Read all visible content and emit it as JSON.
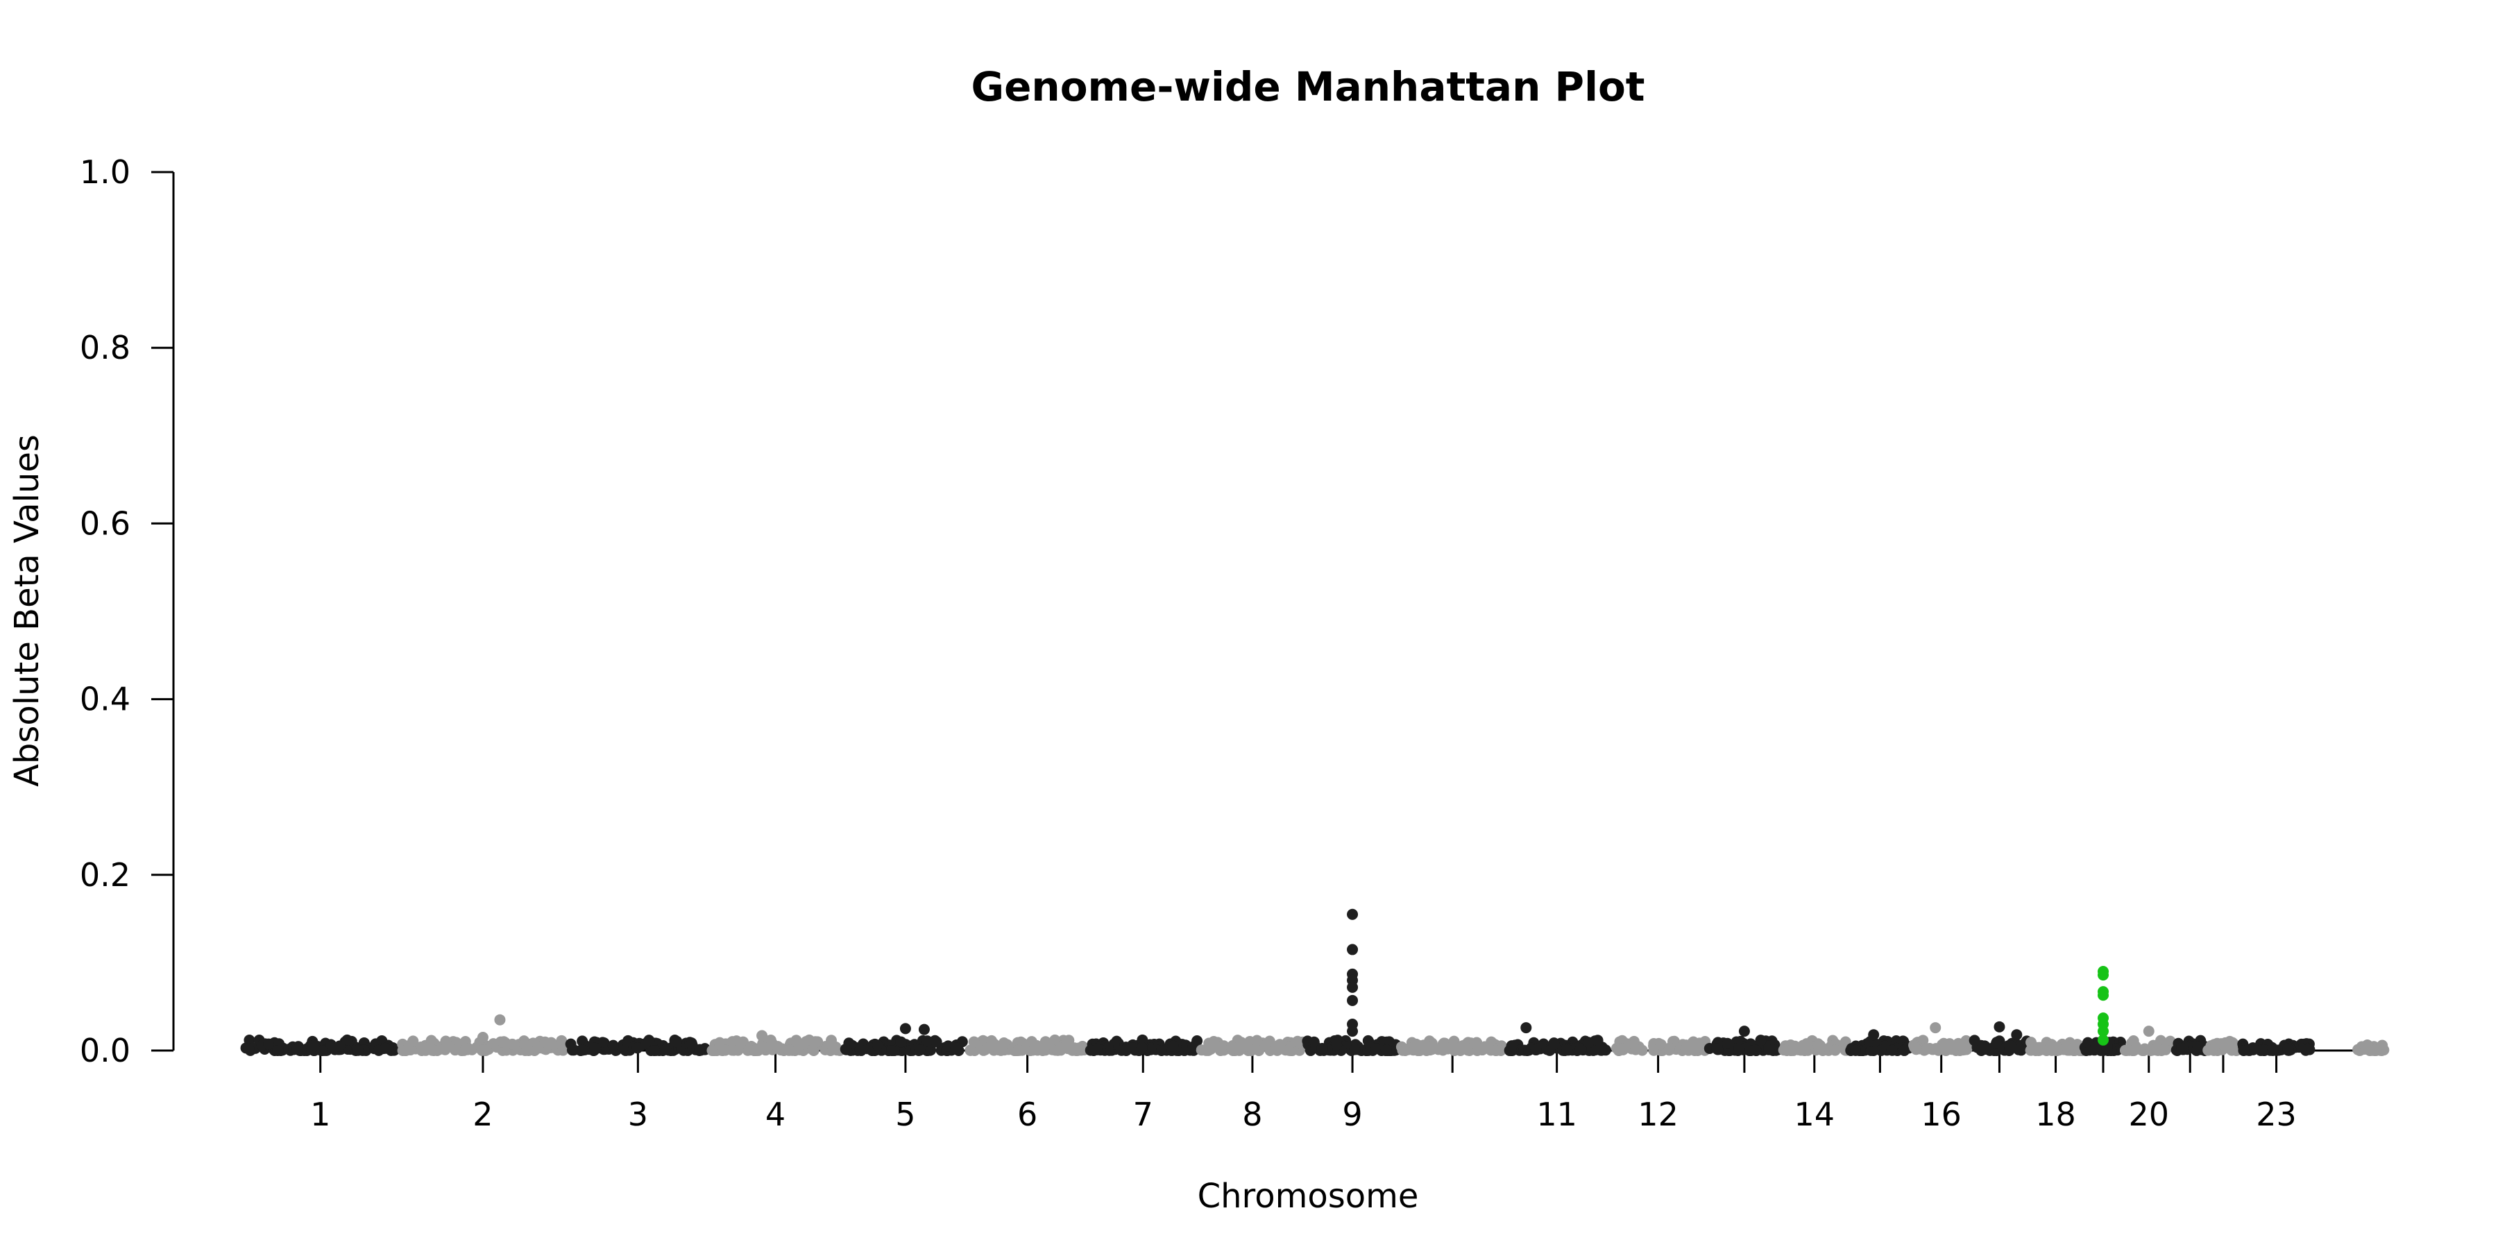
{
  "chart_data": {
    "type": "scatter",
    "subtype": "manhattan",
    "title": "Genome-wide Manhattan Plot",
    "xlabel": "Chromosome",
    "ylabel": "Absolute Beta Values",
    "ylim": [
      0,
      1.0
    ],
    "yticks": [
      "0.0",
      "0.2",
      "0.4",
      "0.6",
      "0.8",
      "1.0"
    ],
    "grid": false,
    "legend": "none",
    "colors": {
      "dark": "#1f1f1f",
      "light": "#999999",
      "highlight": "#17c317"
    },
    "chromosomes": [
      {
        "chr": "1",
        "label": "1",
        "start": 0.0,
        "end": 0.124,
        "max": 0.018
      },
      {
        "chr": "2",
        "label": "2",
        "start": 0.124,
        "end": 0.26,
        "max": 0.035,
        "peaks": [
          [
            0.6,
            0.035
          ],
          [
            0.5,
            0.015
          ]
        ]
      },
      {
        "chr": "3",
        "label": "3",
        "start": 0.26,
        "end": 0.372,
        "max": 0.012
      },
      {
        "chr": "4",
        "label": "4",
        "start": 0.372,
        "end": 0.48,
        "max": 0.017,
        "peaks": [
          [
            0.4,
            0.017
          ]
        ]
      },
      {
        "chr": "5",
        "label": "5",
        "start": 0.48,
        "end": 0.58,
        "max": 0.025,
        "peaks": [
          [
            0.5,
            0.025
          ],
          [
            0.65,
            0.024
          ]
        ]
      },
      {
        "chr": "6",
        "label": "6",
        "start": 0.58,
        "end": 0.675,
        "max": 0.014
      },
      {
        "chr": "7",
        "label": "7",
        "start": 0.675,
        "end": 0.765,
        "max": 0.012
      },
      {
        "chr": "8",
        "label": "8",
        "start": 0.765,
        "end": 0.85,
        "max": 0.016
      },
      {
        "chr": "9",
        "label": "9",
        "start": 0.85,
        "end": 0.925,
        "max": 0.155,
        "peaks": [
          [
            0.5,
            0.155
          ],
          [
            0.5,
            0.115
          ],
          [
            0.5,
            0.087
          ],
          [
            0.5,
            0.08
          ],
          [
            0.5,
            0.072
          ],
          [
            0.5,
            0.057
          ],
          [
            0.5,
            0.03
          ],
          [
            0.5,
            0.022
          ]
        ]
      },
      {
        "chr": "10",
        "label": "",
        "start": 0.925,
        "end": 1.01,
        "max": 0.011
      },
      {
        "chr": "11",
        "label": "11",
        "start": 1.01,
        "end": 1.092,
        "max": 0.026,
        "peaks": [
          [
            0.2,
            0.026
          ]
        ]
      },
      {
        "chr": "12",
        "label": "12",
        "start": 1.092,
        "end": 1.172,
        "max": 0.012
      },
      {
        "chr": "13",
        "label": "",
        "start": 1.172,
        "end": 1.23,
        "max": 0.022,
        "peaks": [
          [
            0.5,
            0.022
          ]
        ]
      },
      {
        "chr": "14",
        "label": "14",
        "start": 1.23,
        "end": 1.284,
        "max": 0.016
      },
      {
        "chr": "15",
        "label": "",
        "start": 1.284,
        "end": 1.335,
        "max": 0.018,
        "peaks": [
          [
            0.4,
            0.018
          ]
        ]
      },
      {
        "chr": "16",
        "label": "16",
        "start": 1.335,
        "end": 1.382,
        "max": 0.026,
        "peaks": [
          [
            0.4,
            0.026
          ]
        ]
      },
      {
        "chr": "17",
        "label": "",
        "start": 1.382,
        "end": 1.428,
        "max": 0.027,
        "peaks": [
          [
            0.5,
            0.027
          ],
          [
            0.8,
            0.018
          ]
        ]
      },
      {
        "chr": "18",
        "label": "18",
        "start": 1.428,
        "end": 1.472,
        "max": 0.01
      },
      {
        "chr": "19",
        "label": "",
        "start": 1.472,
        "end": 1.504,
        "max": 0.09,
        "highlight": true,
        "peaks": [
          [
            0.5,
            0.09
          ],
          [
            0.5,
            0.086
          ],
          [
            0.5,
            0.067
          ],
          [
            0.5,
            0.063
          ],
          [
            0.5,
            0.037
          ],
          [
            0.5,
            0.03
          ],
          [
            0.5,
            0.022
          ],
          [
            0.5,
            0.012
          ]
        ]
      },
      {
        "chr": "20",
        "label": "20",
        "start": 1.504,
        "end": 1.545,
        "max": 0.022,
        "peaks": [
          [
            0.5,
            0.022
          ]
        ]
      },
      {
        "chr": "21",
        "label": "",
        "start": 1.545,
        "end": 1.57,
        "max": 0.012
      },
      {
        "chr": "22",
        "label": "",
        "start": 1.57,
        "end": 1.598,
        "max": 0.014
      },
      {
        "chr": "23",
        "label": "23",
        "start": 1.598,
        "end": 1.655,
        "max": 0.008
      },
      {
        "chr": "24",
        "label": "",
        "start": 1.69,
        "end": 1.715,
        "max": 0.007,
        "noTick": true
      }
    ]
  }
}
